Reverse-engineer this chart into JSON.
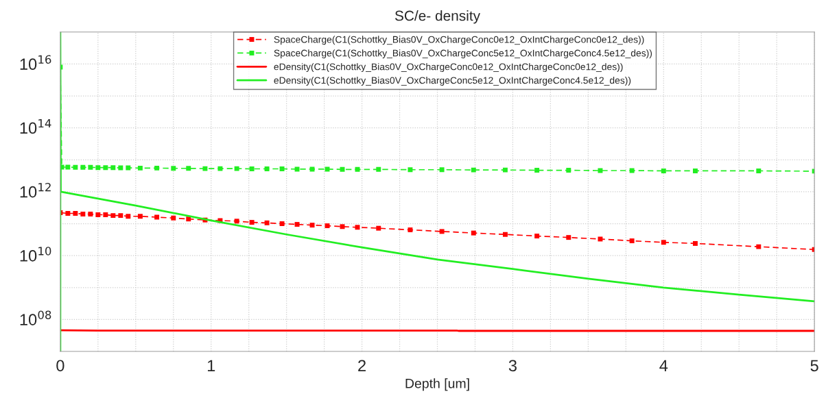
{
  "chart_data": {
    "type": "line",
    "title": "SC/e- density",
    "xlabel": "Depth [um]",
    "log": "y",
    "grid": true,
    "legend": "top",
    "xlim": [
      0,
      5
    ],
    "xticks": [
      0,
      {
        "value": 0.25,
        "label": null
      },
      {
        "value": 0.5,
        "label": null
      },
      {
        "value": 0.75,
        "label": null
      },
      1,
      {
        "value": 1.25,
        "label": null
      },
      {
        "value": 1.5,
        "label": null
      },
      {
        "value": 1.75,
        "label": null
      },
      2,
      {
        "value": 2.25,
        "label": null
      },
      {
        "value": 2.5,
        "label": null
      },
      {
        "value": 2.75,
        "label": null
      },
      3,
      {
        "value": 3.25,
        "label": null
      },
      {
        "value": 3.5,
        "label": null
      },
      {
        "value": 3.75,
        "label": null
      },
      4,
      {
        "value": 4.25,
        "label": null
      },
      {
        "value": 4.5,
        "label": null
      },
      {
        "value": 4.75,
        "label": null
      },
      5
    ],
    "ylim": [
      10000000.0,
      1e+17
    ],
    "yticks": [
      {
        "value": 100000000.0,
        "label": "10$^{08}$"
      },
      {
        "value": 1000000000.0,
        "label": null
      },
      {
        "value": 10000000000.0,
        "label": "10$^{10}$"
      },
      {
        "value": 100000000000.0,
        "label": null
      },
      {
        "value": 1000000000000.0,
        "label": "10$^{12}$"
      },
      {
        "value": 10000000000000.0,
        "label": null
      },
      {
        "value": 100000000000000.0,
        "label": "10$^{14}$"
      },
      {
        "value": 1000000000000000.0,
        "label": null
      },
      {
        "value": 1e+16,
        "label": "10$^{16}$"
      }
    ],
    "series": [
      {
        "name": "SpaceCharge(C1(Schottky_Bias0V_OxChargeConc0e12_OxIntChargeConc0e12_des))",
        "color": "#ff0000",
        "line_style": "dashed",
        "marker": "square",
        "x": [
          0,
          0.05,
          0.1,
          0.15,
          0.2,
          0.25,
          0.3,
          0.35,
          0.4,
          0.45,
          0.53,
          0.64,
          0.75,
          0.85,
          0.96,
          1.06,
          1.17,
          1.27,
          1.37,
          1.47,
          1.57,
          1.67,
          1.77,
          1.87,
          1.97,
          2.11,
          2.32,
          2.53,
          2.74,
          2.95,
          3.16,
          3.37,
          3.58,
          3.79,
          4.0,
          4.21,
          4.63,
          5.0
        ],
        "values": [
          220000000000.0,
          210000000000.0,
          210000000000.0,
          200000000000.0,
          200000000000.0,
          190000000000.0,
          190000000000.0,
          180000000000.0,
          180000000000.0,
          170000000000.0,
          170000000000.0,
          160000000000.0,
          150000000000.0,
          140000000000.0,
          130000000000.0,
          125000000000.0,
          120000000000.0,
          110000000000.0,
          106000000000.0,
          100000000000.0,
          95000000000.0,
          90000000000.0,
          86000000000.0,
          81000000000.0,
          77000000000.0,
          72000000000.0,
          64000000000.0,
          57000000000.0,
          51000000000.0,
          46000000000.0,
          41000000000.0,
          37000000000.0,
          33000000000.0,
          29000000000.0,
          26000000000.0,
          24000000000.0,
          19000000000.0,
          15500000000.0
        ]
      },
      {
        "name": "SpaceCharge(C1(Schottky_Bias0V_OxChargeConc5e12_OxIntChargeConc4.5e12_des))",
        "color": "#22ee22",
        "line_style": "dashed",
        "marker": "square",
        "x": [
          0,
          0.01,
          0.05,
          0.1,
          0.15,
          0.2,
          0.25,
          0.3,
          0.35,
          0.4,
          0.45,
          0.53,
          0.64,
          0.75,
          0.85,
          0.96,
          1.06,
          1.17,
          1.27,
          1.37,
          1.47,
          1.57,
          1.67,
          1.77,
          1.87,
          1.97,
          2.11,
          2.32,
          2.53,
          2.74,
          2.95,
          3.16,
          3.37,
          3.58,
          3.79,
          4.0,
          4.21,
          4.63,
          5.0
        ],
        "values": [
          8000000000000000.0,
          5900000000000.0,
          5900000000000.0,
          5800000000000.0,
          5800000000000.0,
          5800000000000.0,
          5700000000000.0,
          5700000000000.0,
          5700000000000.0,
          5600000000000.0,
          5600000000000.0,
          5500000000000.0,
          5500000000000.0,
          5400000000000.0,
          5400000000000.0,
          5300000000000.0,
          5300000000000.0,
          5300000000000.0,
          5200000000000.0,
          5200000000000.0,
          5200000000000.0,
          5100000000000.0,
          5100000000000.0,
          5100000000000.0,
          5000000000000.0,
          5000000000000.0,
          5000000000000.0,
          4900000000000.0,
          4900000000000.0,
          4800000000000.0,
          4800000000000.0,
          4700000000000.0,
          4700000000000.0,
          4600000000000.0,
          4600000000000.0,
          4500000000000.0,
          4500000000000.0,
          4500000000000.0,
          4400000000000.0
        ]
      },
      {
        "name": "eDensity(C1(Schottky_Bias0V_OxChargeConc0e12_OxIntChargeConc0e12_des))",
        "color": "#ff0000",
        "line_style": "solid",
        "marker": "none",
        "x": [
          0,
          0.25,
          2.63,
          2.64,
          5.0
        ],
        "values": [
          46000000.0,
          45000000.0,
          45000000.0,
          44000000.0,
          44000000.0
        ]
      },
      {
        "name": "eDensity(C1(Schottky_Bias0V_OxChargeConc5e12_OxIntChargeConc4.5e12_des))",
        "color": "#22ee22",
        "line_style": "solid",
        "marker": "none",
        "x": [
          0,
          0,
          0.003,
          0.5,
          1,
          1.5,
          2,
          2.5,
          3,
          3.5,
          4,
          4.5,
          5
        ],
        "values": [
          10000000.0,
          1e+17,
          1000000000000.0,
          370000000000.0,
          126000000000.0,
          46000000000.0,
          18000000000.0,
          7500000000.0,
          3800000000.0,
          1900000000.0,
          1000000000.0,
          600000000.0,
          370000000.0
        ]
      }
    ]
  }
}
